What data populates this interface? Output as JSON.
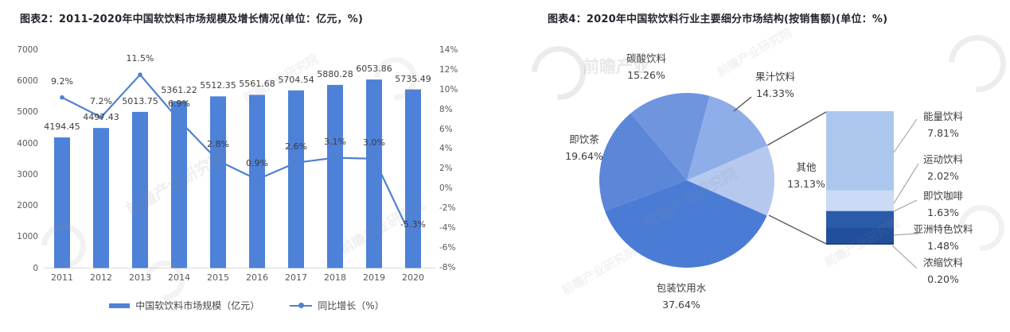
{
  "watermark": {
    "text": "前瞻产业研究院",
    "brand": "前瞻产业"
  },
  "chart_data": [
    {
      "id": "market-size-growth",
      "type": "bar+line",
      "title": "图表2：2011-2020年中国软饮料市场规模及增长情况(单位：亿元，%)",
      "categories": [
        "2011",
        "2012",
        "2013",
        "2014",
        "2015",
        "2016",
        "2017",
        "2018",
        "2019",
        "2020"
      ],
      "series": [
        {
          "name": "中国软饮料市场规模（亿元）",
          "type": "bar",
          "axis": "left",
          "color": "#4e81d8",
          "values": [
            4194.45,
            4497.43,
            5013.75,
            5361.22,
            5512.35,
            5561.68,
            5704.54,
            5880.28,
            6053.86,
            5735.49
          ],
          "labels": [
            "4194.45",
            "4497.43",
            "5013.75",
            "5361.22",
            "5512.35",
            "5561.68",
            "5704.54",
            "5880.28",
            "6053.86",
            "5735.49"
          ]
        },
        {
          "name": "同比增长（%）",
          "type": "line",
          "axis": "right",
          "color": "#4f80d2",
          "values": [
            9.2,
            7.2,
            11.5,
            6.9,
            2.8,
            0.9,
            2.6,
            3.1,
            3.0,
            -5.3
          ],
          "labels": [
            "9.2%",
            "7.2%",
            "11.5%",
            "6.9%",
            "2.8%",
            "0.9%",
            "2.6%",
            "3.1%",
            "3.0%",
            "-5.3%"
          ]
        }
      ],
      "left_axis": {
        "min": 0,
        "max": 7000,
        "step": 1000,
        "ticks": [
          "0",
          "1000",
          "2000",
          "3000",
          "4000",
          "5000",
          "6000",
          "7000"
        ]
      },
      "right_axis": {
        "min": -8,
        "max": 14,
        "step": 2,
        "ticks": [
          "14%",
          "12%",
          "10%",
          "8%",
          "6%",
          "4%",
          "2%",
          "0%",
          "-2%",
          "-4%",
          "-6%",
          "-8%"
        ]
      },
      "grid": false,
      "legend_position": "bottom"
    },
    {
      "id": "segment-structure-2020",
      "type": "pie",
      "title": "图表4：2020年中国软饮料行业主要细分市场结构(按销售额)(单位：%)",
      "clockwise": true,
      "start_angle_deg_from_12": 15,
      "slices": [
        {
          "label": "果汁饮料",
          "value": 14.33,
          "display": "14.33%",
          "color": "#8fade8"
        },
        {
          "label": "其他",
          "value": 13.13,
          "display": "13.13%",
          "color": "#b5c9ef"
        },
        {
          "label": "包装饮用水",
          "value": 37.64,
          "display": "37.64%",
          "color": "#4a7cd6"
        },
        {
          "label": "即饮茶",
          "value": 19.64,
          "display": "19.64%",
          "color": "#5c86d8"
        },
        {
          "label": "碳酸饮料",
          "value": 15.26,
          "display": "15.26%",
          "color": "#6e95de"
        }
      ],
      "breakout": {
        "parent": "其他",
        "segments": [
          {
            "label": "能量饮料",
            "value": 7.81,
            "display": "7.81%",
            "color": "#abc7ee"
          },
          {
            "label": "运动饮料",
            "value": 2.02,
            "display": "2.02%",
            "color": "#cbdbf6"
          },
          {
            "label": "即饮咖啡",
            "value": 1.63,
            "display": "1.63%",
            "color": "#2a5ba9"
          },
          {
            "label": "亚洲特色饮料",
            "value": 1.48,
            "display": "1.48%",
            "color": "#224f9b"
          },
          {
            "label": "浓缩饮料",
            "value": 0.2,
            "display": "0.20%",
            "color": "#1a4284"
          }
        ]
      }
    }
  ]
}
